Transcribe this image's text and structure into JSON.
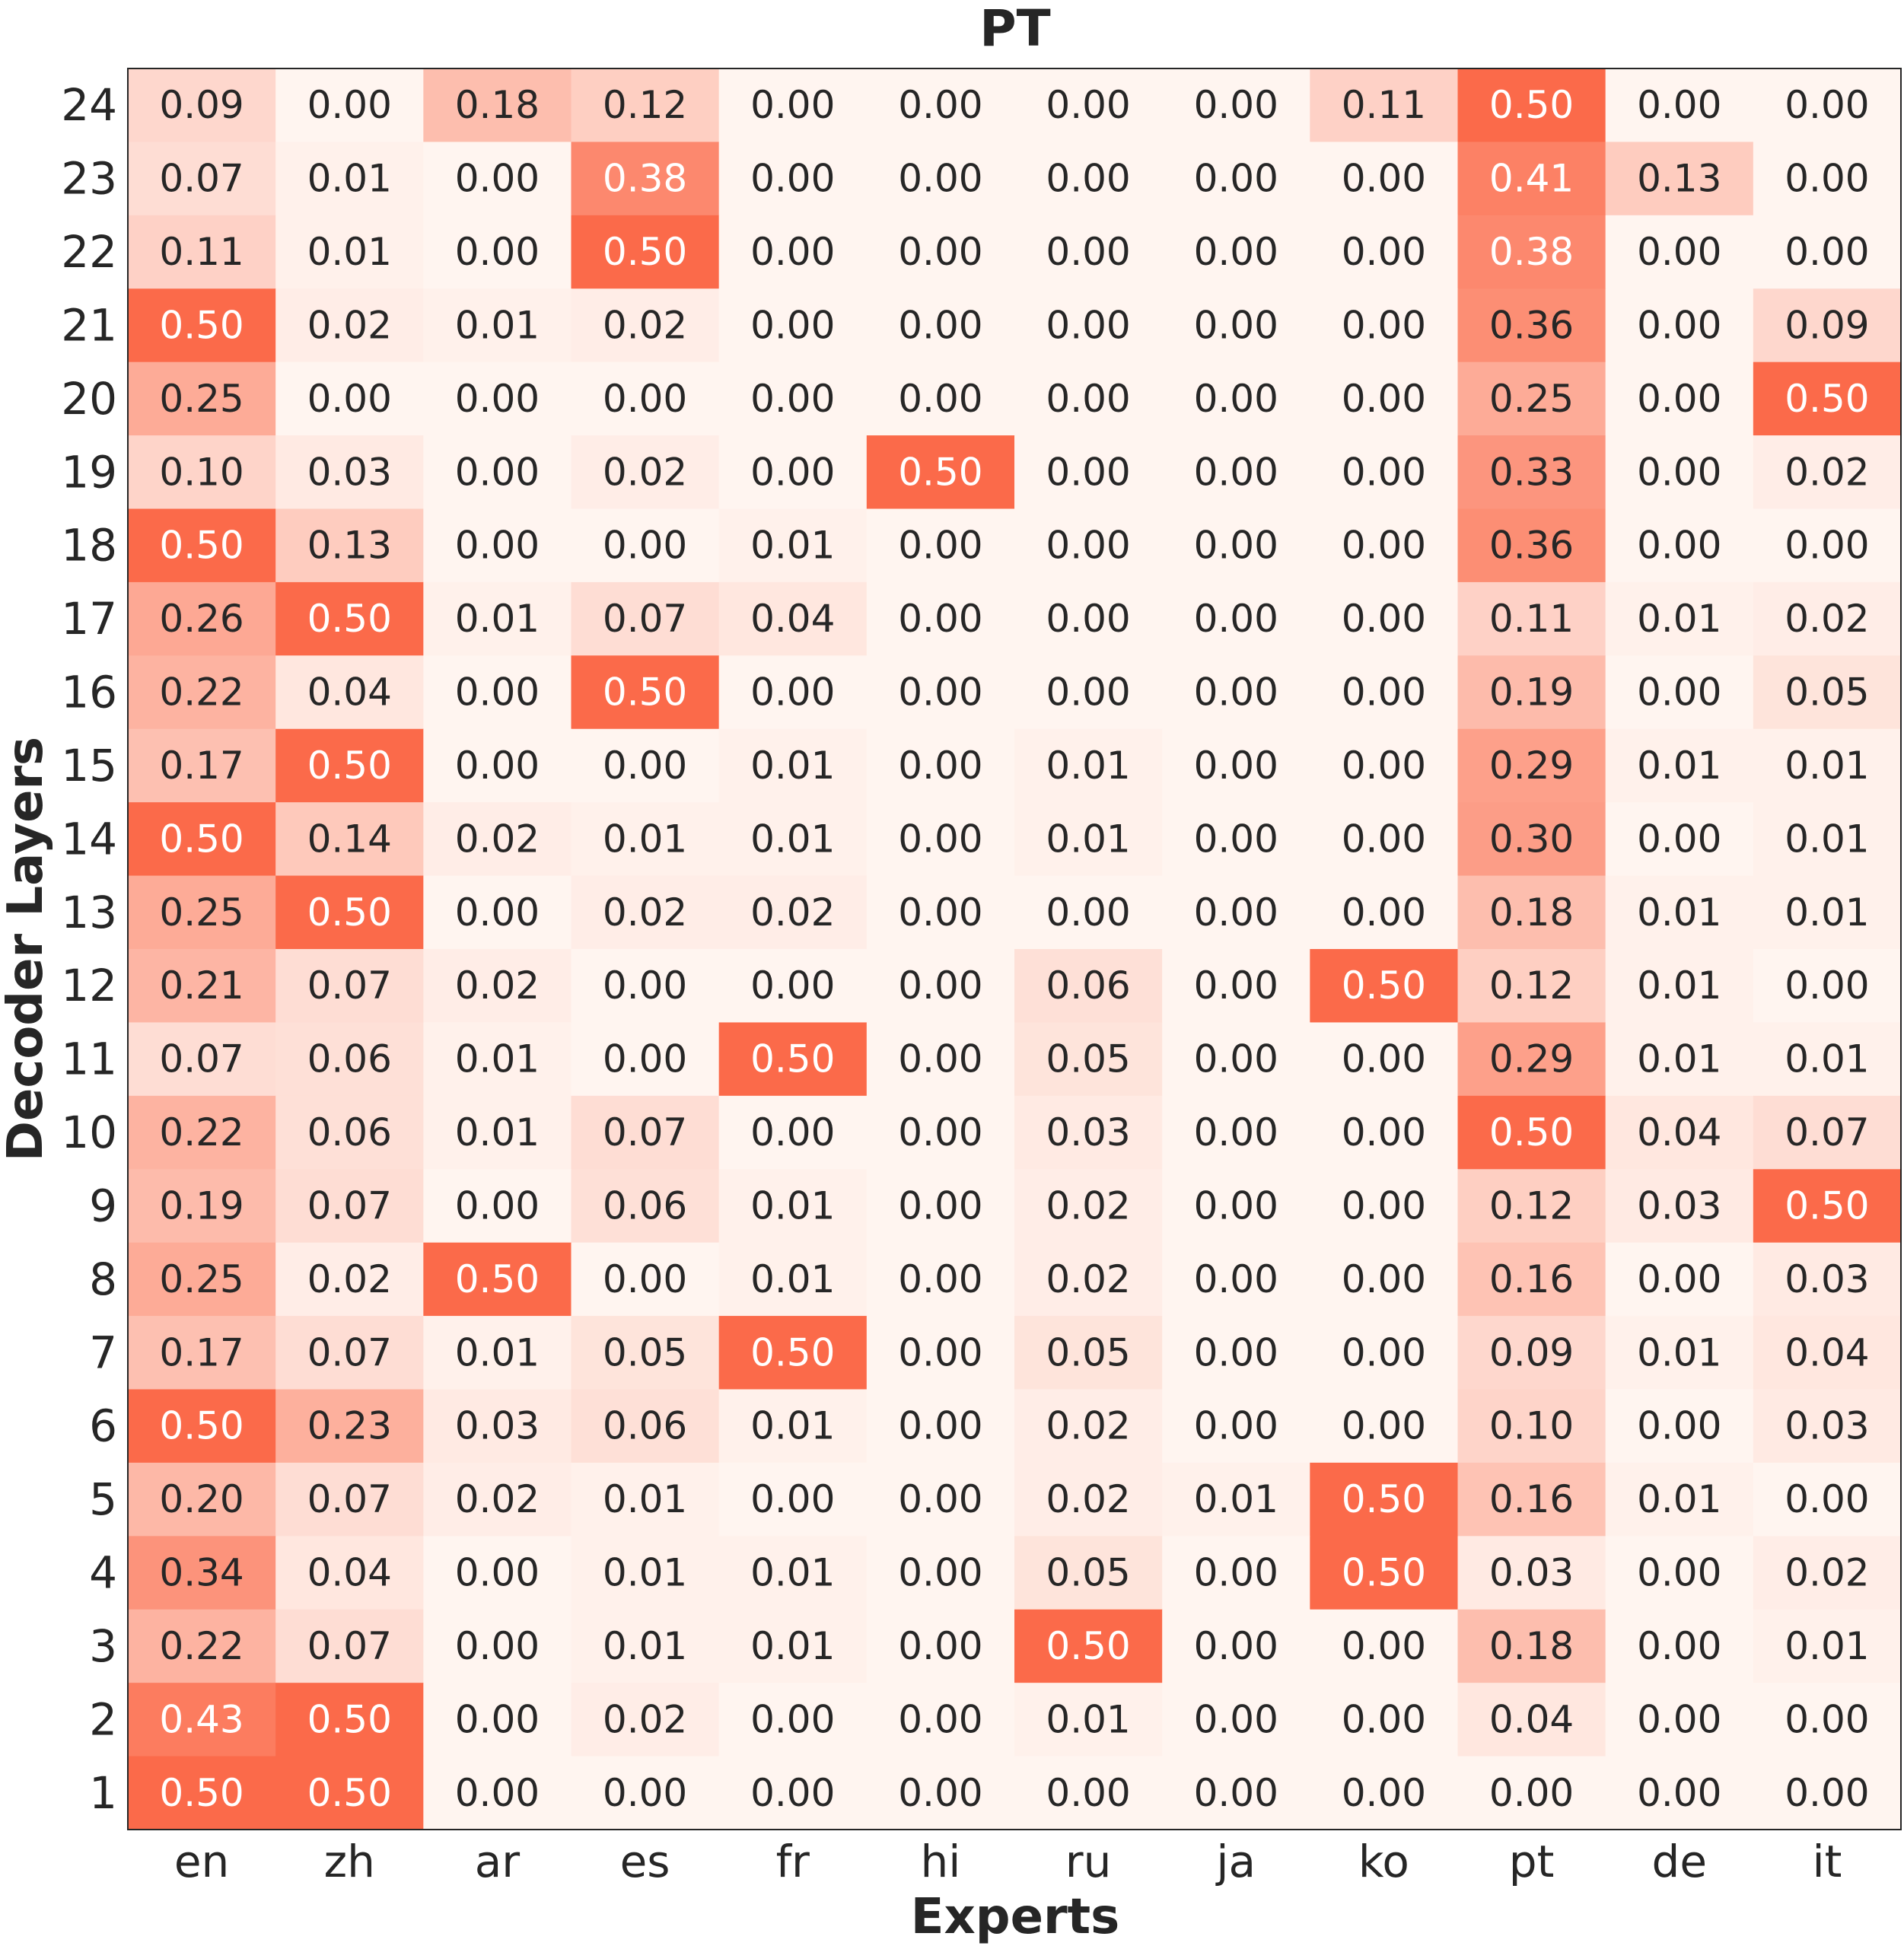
{
  "chart_data": {
    "type": "heatmap",
    "title": "PT",
    "xlabel": "Experts",
    "ylabel": "Decoder Layers",
    "x": [
      "en",
      "zh",
      "ar",
      "es",
      "fr",
      "hi",
      "ru",
      "ja",
      "ko",
      "pt",
      "de",
      "it"
    ],
    "y": [
      "24",
      "23",
      "22",
      "21",
      "20",
      "19",
      "18",
      "17",
      "16",
      "15",
      "14",
      "13",
      "12",
      "11",
      "10",
      "9",
      "8",
      "7",
      "6",
      "5",
      "4",
      "3",
      "2",
      "1"
    ],
    "values": [
      [
        0.09,
        0.0,
        0.18,
        0.12,
        0.0,
        0.0,
        0.0,
        0.0,
        0.11,
        0.5,
        0.0,
        0.0
      ],
      [
        0.07,
        0.01,
        0.0,
        0.38,
        0.0,
        0.0,
        0.0,
        0.0,
        0.0,
        0.41,
        0.13,
        0.0
      ],
      [
        0.11,
        0.01,
        0.0,
        0.5,
        0.0,
        0.0,
        0.0,
        0.0,
        0.0,
        0.38,
        0.0,
        0.0
      ],
      [
        0.5,
        0.02,
        0.01,
        0.02,
        0.0,
        0.0,
        0.0,
        0.0,
        0.0,
        0.36,
        0.0,
        0.09
      ],
      [
        0.25,
        0.0,
        0.0,
        0.0,
        0.0,
        0.0,
        0.0,
        0.0,
        0.0,
        0.25,
        0.0,
        0.5
      ],
      [
        0.1,
        0.03,
        0.0,
        0.02,
        0.0,
        0.5,
        0.0,
        0.0,
        0.0,
        0.33,
        0.0,
        0.02
      ],
      [
        0.5,
        0.13,
        0.0,
        0.0,
        0.01,
        0.0,
        0.0,
        0.0,
        0.0,
        0.36,
        0.0,
        0.0
      ],
      [
        0.26,
        0.5,
        0.01,
        0.07,
        0.04,
        0.0,
        0.0,
        0.0,
        0.0,
        0.11,
        0.01,
        0.02
      ],
      [
        0.22,
        0.04,
        0.0,
        0.5,
        0.0,
        0.0,
        0.0,
        0.0,
        0.0,
        0.19,
        0.0,
        0.05
      ],
      [
        0.17,
        0.5,
        0.0,
        0.0,
        0.01,
        0.0,
        0.01,
        0.0,
        0.0,
        0.29,
        0.01,
        0.01
      ],
      [
        0.5,
        0.14,
        0.02,
        0.01,
        0.01,
        0.0,
        0.01,
        0.0,
        0.0,
        0.3,
        0.0,
        0.01
      ],
      [
        0.25,
        0.5,
        0.0,
        0.02,
        0.02,
        0.0,
        0.0,
        0.0,
        0.0,
        0.18,
        0.01,
        0.01
      ],
      [
        0.21,
        0.07,
        0.02,
        0.0,
        0.0,
        0.0,
        0.06,
        0.0,
        0.5,
        0.12,
        0.01,
        0.0
      ],
      [
        0.07,
        0.06,
        0.01,
        0.0,
        0.5,
        0.0,
        0.05,
        0.0,
        0.0,
        0.29,
        0.01,
        0.01
      ],
      [
        0.22,
        0.06,
        0.01,
        0.07,
        0.0,
        0.0,
        0.03,
        0.0,
        0.0,
        0.5,
        0.04,
        0.07
      ],
      [
        0.19,
        0.07,
        0.0,
        0.06,
        0.01,
        0.0,
        0.02,
        0.0,
        0.0,
        0.12,
        0.03,
        0.5
      ],
      [
        0.25,
        0.02,
        0.5,
        0.0,
        0.01,
        0.0,
        0.02,
        0.0,
        0.0,
        0.16,
        0.0,
        0.03
      ],
      [
        0.17,
        0.07,
        0.01,
        0.05,
        0.5,
        0.0,
        0.05,
        0.0,
        0.0,
        0.09,
        0.01,
        0.04
      ],
      [
        0.5,
        0.23,
        0.03,
        0.06,
        0.01,
        0.0,
        0.02,
        0.0,
        0.0,
        0.1,
        0.0,
        0.03
      ],
      [
        0.2,
        0.07,
        0.02,
        0.01,
        0.0,
        0.0,
        0.02,
        0.01,
        0.5,
        0.16,
        0.01,
        0.0
      ],
      [
        0.34,
        0.04,
        0.0,
        0.01,
        0.01,
        0.0,
        0.05,
        0.0,
        0.5,
        0.03,
        0.0,
        0.02
      ],
      [
        0.22,
        0.07,
        0.0,
        0.01,
        0.01,
        0.0,
        0.5,
        0.0,
        0.0,
        0.18,
        0.0,
        0.01
      ],
      [
        0.43,
        0.5,
        0.0,
        0.02,
        0.0,
        0.0,
        0.01,
        0.0,
        0.0,
        0.04,
        0.0,
        0.0
      ],
      [
        0.5,
        0.5,
        0.0,
        0.0,
        0.0,
        0.0,
        0.0,
        0.0,
        0.0,
        0.0,
        0.0,
        0.0
      ]
    ],
    "value_range": [
      0,
      0.5
    ],
    "colormap": {
      "low": "#fff5f0",
      "high": "#fb6a4a"
    },
    "colorbar": false,
    "grid": false
  }
}
